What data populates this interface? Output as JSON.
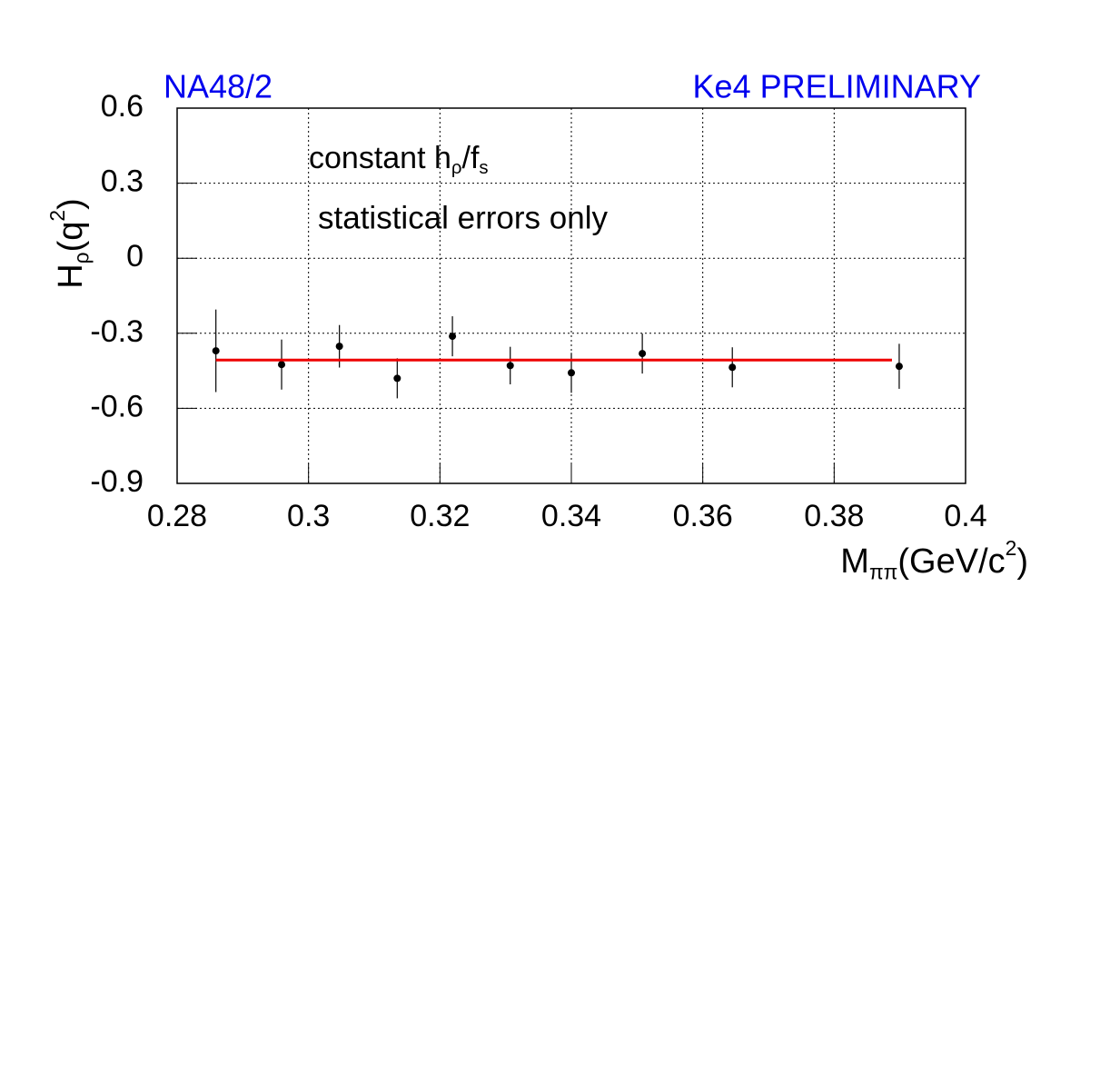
{
  "chart_data": {
    "type": "scatter",
    "title_left": "NA48/2",
    "title_right": "Ke4 PRELIMINARY",
    "title_color": "#0000ee",
    "annotation": [
      {
        "text": "constant h"
      },
      {
        "text": "ρ",
        "sub": true
      },
      {
        "text": "/f"
      },
      {
        "text": "s",
        "sub": true
      }
    ],
    "annotation2": "statistical errors only",
    "ylabel": [
      {
        "text": "H"
      },
      {
        "text": "ρ",
        "sub": true
      },
      {
        "text": "(q"
      },
      {
        "text": "2",
        "sup": true
      },
      {
        "text": ")"
      }
    ],
    "xlabel": [
      {
        "text": "M"
      },
      {
        "text": "ππ",
        "sub": true
      },
      {
        "text": "(GeV/c"
      },
      {
        "text": "2",
        "sup": true
      },
      {
        "text": ")"
      }
    ],
    "xlim": [
      0.28,
      0.4
    ],
    "xticks": [
      0.28,
      0.3,
      0.32,
      0.34,
      0.36,
      0.38,
      0.4
    ],
    "ylim": [
      -0.9,
      0.6
    ],
    "yticks": [
      -0.9,
      -0.6,
      -0.3,
      0,
      0.3,
      0.6
    ],
    "grid": true,
    "series": [
      {
        "type": "errorbar",
        "color": "#000000",
        "x": [
          0.2859,
          0.2959,
          0.3047,
          0.3135,
          0.3219,
          0.3307,
          0.34,
          0.3508,
          0.3645,
          0.3899
        ],
        "values": [
          -0.37,
          -0.425,
          -0.352,
          -0.48,
          -0.312,
          -0.429,
          -0.458,
          -0.381,
          -0.436,
          -0.432
        ],
        "errors": [
          0.165,
          0.1,
          0.085,
          0.08,
          0.08,
          0.075,
          0.08,
          0.08,
          0.08,
          0.09
        ]
      },
      {
        "type": "line",
        "color": "#ee0000",
        "x": [
          0.2859,
          0.3888
        ],
        "values": [
          -0.407,
          -0.407
        ]
      }
    ]
  }
}
